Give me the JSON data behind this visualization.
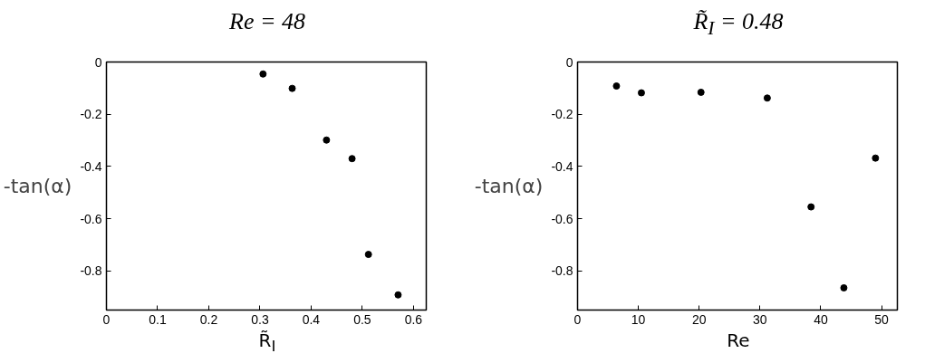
{
  "chart_data": [
    {
      "type": "scatter",
      "title": "Re = 48",
      "xlabel": "R̃$_{I}$",
      "ylabel": "-tan(α)",
      "marker": "circle",
      "grid": false,
      "x": [
        0.306,
        0.363,
        0.43,
        0.48,
        0.512,
        0.57
      ],
      "series": [
        {
          "color": "#000000",
          "values": [
            -0.046,
            -0.101,
            -0.299,
            -0.37,
            -0.737,
            -0.892
          ]
        }
      ],
      "xlim": [
        0,
        0.625
      ],
      "ylim": [
        -0.95,
        0
      ],
      "xticks": [
        0,
        0.1,
        0.2,
        0.3,
        0.4,
        0.5,
        0.6
      ],
      "yticks": [
        0,
        -0.2,
        -0.4,
        -0.6,
        -0.8
      ]
    },
    {
      "type": "scatter",
      "title": "R̃$_{I}$ = 0.48",
      "xlabel": "Re",
      "ylabel": "-tan(α)",
      "marker": "circle",
      "grid": false,
      "x": [
        6.4,
        10.5,
        20.3,
        31.2,
        38.4,
        43.8,
        49.0
      ],
      "series": [
        {
          "color": "#000000",
          "values": [
            -0.092,
            -0.118,
            -0.116,
            -0.138,
            -0.555,
            -0.865,
            -0.368
          ]
        }
      ],
      "xlim": [
        0,
        52.6
      ],
      "ylim": [
        -0.95,
        0
      ],
      "xticks": [
        0,
        10,
        20,
        30,
        40,
        50
      ],
      "yticks": [
        0,
        -0.2,
        -0.4,
        -0.6,
        -0.8
      ]
    }
  ]
}
